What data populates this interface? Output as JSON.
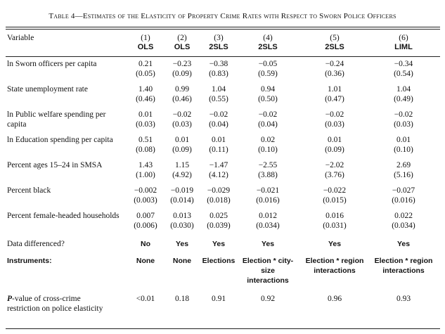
{
  "table_title": "Table 4—Estimates of the Elasticity of Property Crime Rates with Respect to Sworn Police Officers",
  "header": {
    "variable_label": "Variable",
    "columns": [
      {
        "num": "(1)",
        "est": "OLS"
      },
      {
        "num": "(2)",
        "est": "OLS"
      },
      {
        "num": "(3)",
        "est": "2SLS"
      },
      {
        "num": "(4)",
        "est": "2SLS"
      },
      {
        "num": "(5)",
        "est": "2SLS"
      },
      {
        "num": "(6)",
        "est": "LIML"
      }
    ]
  },
  "rows": [
    {
      "label": "ln Sworn officers per capita",
      "coef": [
        "0.21",
        "−0.23",
        "−0.38",
        "−0.05",
        "−0.24",
        "−0.34"
      ],
      "se": [
        "(0.05)",
        "(0.09)",
        "(0.83)",
        "(0.59)",
        "(0.36)",
        "(0.54)"
      ]
    },
    {
      "label": "State unemployment rate",
      "coef": [
        "1.40",
        "0.99",
        "1.04",
        "0.94",
        "1.01",
        "1.04"
      ],
      "se": [
        "(0.46)",
        "(0.46)",
        "(0.55)",
        "(0.50)",
        "(0.47)",
        "(0.49)"
      ]
    },
    {
      "label": "ln Public welfare spending per capita",
      "coef": [
        "0.01",
        "−0.02",
        "−0.02",
        "−0.02",
        "−0.02",
        "−0.02"
      ],
      "se": [
        "(0.03)",
        "(0.03)",
        "(0.04)",
        "(0.04)",
        "(0.03)",
        "(0.03)"
      ]
    },
    {
      "label": "ln Education spending per capita",
      "coef": [
        "0.51",
        "0.01",
        "0.01",
        "0.02",
        "0.01",
        "0.01"
      ],
      "se": [
        "(0.08)",
        "(0.09)",
        "(0.11)",
        "(0.10)",
        "(0.09)",
        "(0.10)"
      ]
    },
    {
      "label": "Percent ages 15–24 in SMSA",
      "coef": [
        "1.43",
        "1.15",
        "−1.47",
        "−2.55",
        "−2.02",
        "2.69"
      ],
      "se": [
        "(1.00)",
        "(4.92)",
        "(4.12)",
        "(3.88)",
        "(3.76)",
        "(5.16)"
      ]
    },
    {
      "label": "Percent black",
      "coef": [
        "−0.002",
        "−0.019",
        "−0.029",
        "−0.021",
        "−0.022",
        "−0.027"
      ],
      "se": [
        "(0.003)",
        "(0.014)",
        "(0.018)",
        "(0.016)",
        "(0.015)",
        "(0.016)"
      ]
    },
    {
      "label": "Percent female-headed households",
      "coef": [
        "0.007",
        "0.013",
        "0.025",
        "0.012",
        "0.016",
        "0.022"
      ],
      "se": [
        "(0.006)",
        "(0.030)",
        "(0.039)",
        "(0.034)",
        "(0.031)",
        "(0.034)"
      ]
    }
  ],
  "differenced": {
    "label": "Data differenced?",
    "values": [
      "No",
      "Yes",
      "Yes",
      "Yes",
      "Yes",
      "Yes"
    ]
  },
  "instruments": {
    "label": "Instruments:",
    "values": [
      "None",
      "None",
      "Elections",
      "Election * city-size interactions",
      "Election * region interactions",
      "Election * region interactions"
    ]
  },
  "pvalue": {
    "label_p": "P",
    "label_rest": "-value of cross-crime restriction on police elasticity",
    "values": [
      "<0.01",
      "0.18",
      "0.91",
      "0.92",
      "0.96",
      "0.93"
    ]
  }
}
